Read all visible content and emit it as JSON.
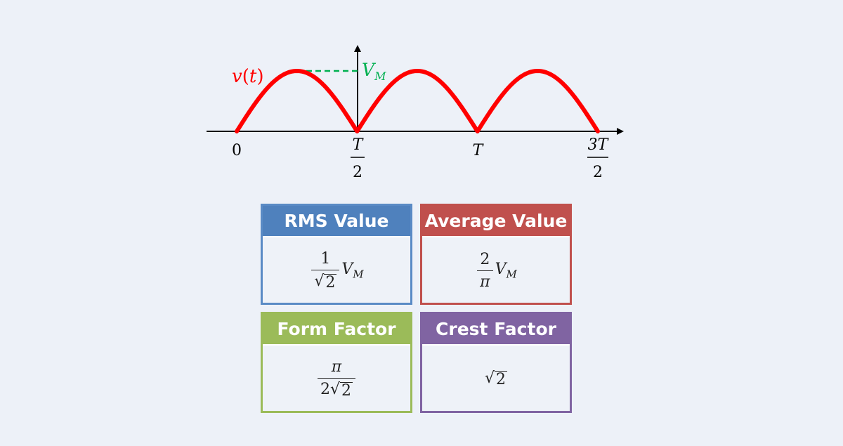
{
  "diagram": {
    "signal_label_v": "v",
    "signal_label_open": "(",
    "signal_label_t": "t",
    "signal_label_close": ")",
    "peak_label_main": "V",
    "peak_label_sub": "M",
    "tick_zero": "0",
    "tick_half_num": "T",
    "tick_half_den": "2",
    "tick_full": "T",
    "tick_three_half_num": "3T",
    "tick_three_half_den": "2",
    "colors": {
      "wave": "#ff0000",
      "peak_line": "#00b050",
      "axis": "#000000"
    }
  },
  "cards": {
    "rms": {
      "title": "RMS Value",
      "num": "1",
      "root_sign": "√",
      "root_arg": "2",
      "v": "V",
      "sub": "M"
    },
    "avg": {
      "title": "Average Value",
      "num": "2",
      "den": "π",
      "v": "V",
      "sub": "M"
    },
    "form": {
      "title": "Form Factor",
      "num": "π",
      "den_coef": "2",
      "root_sign": "√",
      "root_arg": "2"
    },
    "crest": {
      "title": "Crest Factor",
      "root_sign": "√",
      "root_arg": "2"
    }
  }
}
